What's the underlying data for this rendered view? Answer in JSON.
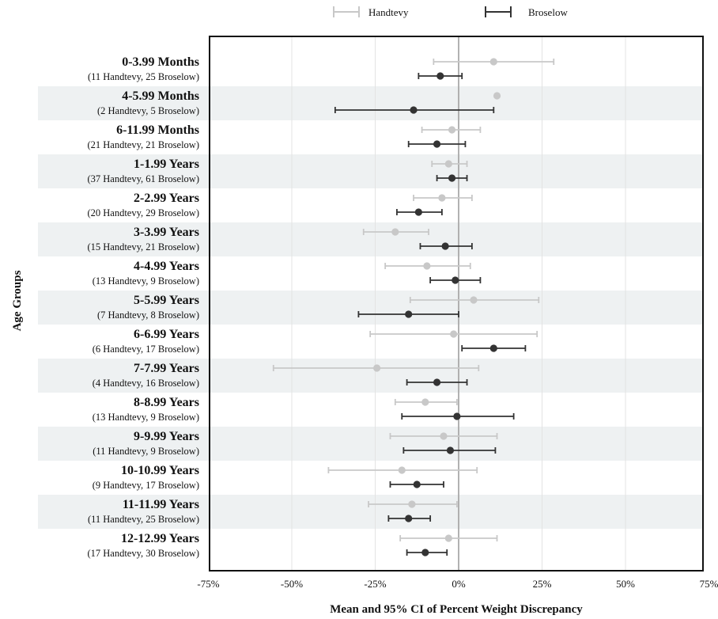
{
  "chart_data": {
    "type": "forest",
    "xlabel": "Mean and 95% CI of Percent Weight Discrepancy",
    "ylabel": "Age Groups",
    "xlim": [
      -75,
      75
    ],
    "xticks": [
      "-75%",
      "-50%",
      "-25%",
      "0%",
      "25%",
      "50%",
      "75%"
    ],
    "xtick_values": [
      -75,
      -50,
      -25,
      0,
      25,
      50,
      75
    ],
    "grid": "vertical",
    "legend_position": "top",
    "series": [
      {
        "name": "Handtevy",
        "color": "#c8c8c8"
      },
      {
        "name": "Broselow",
        "color": "#333333"
      }
    ],
    "groups": [
      {
        "label": "0-3.99 Months",
        "counts": "(11 Handtevy, 25 Broselow)",
        "handtevy": {
          "mean": 10.5,
          "lo": -7.5,
          "hi": 28.5
        },
        "broselow": {
          "mean": -5.5,
          "lo": -12.0,
          "hi": 1.0
        }
      },
      {
        "label": "4-5.99 Months",
        "counts": "(2 Handtevy, 5 Broselow)",
        "handtevy": {
          "mean": 11.5,
          "lo": null,
          "hi": null
        },
        "broselow": {
          "mean": -13.5,
          "lo": -37.0,
          "hi": 10.5
        }
      },
      {
        "label": "6-11.99 Months",
        "counts": "(21 Handtevy, 21 Broselow)",
        "handtevy": {
          "mean": -2.0,
          "lo": -11.0,
          "hi": 6.5
        },
        "broselow": {
          "mean": -6.5,
          "lo": -15.0,
          "hi": 2.0
        }
      },
      {
        "label": "1-1.99 Years",
        "counts": "(37 Handtevy, 61 Broselow)",
        "handtevy": {
          "mean": -3.0,
          "lo": -8.0,
          "hi": 2.5
        },
        "broselow": {
          "mean": -2.0,
          "lo": -6.5,
          "hi": 2.5
        }
      },
      {
        "label": "2-2.99 Years",
        "counts": "(20 Handtevy, 29 Broselow)",
        "handtevy": {
          "mean": -5.0,
          "lo": -13.5,
          "hi": 4.0
        },
        "broselow": {
          "mean": -12.0,
          "lo": -18.5,
          "hi": -5.0
        }
      },
      {
        "label": "3-3.99 Years",
        "counts": "(15 Handtevy, 21 Broselow)",
        "handtevy": {
          "mean": -19.0,
          "lo": -28.5,
          "hi": -9.0
        },
        "broselow": {
          "mean": -4.0,
          "lo": -11.5,
          "hi": 4.0
        }
      },
      {
        "label": "4-4.99 Years",
        "counts": "(13 Handtevy, 9 Broselow)",
        "handtevy": {
          "mean": -9.5,
          "lo": -22.0,
          "hi": 3.5
        },
        "broselow": {
          "mean": -1.0,
          "lo": -8.5,
          "hi": 6.5
        }
      },
      {
        "label": "5-5.99 Years",
        "counts": "(7 Handtevy, 8 Broselow)",
        "handtevy": {
          "mean": 4.5,
          "lo": -14.5,
          "hi": 24.0
        },
        "broselow": {
          "mean": -15.0,
          "lo": -30.0,
          "hi": 0.0
        }
      },
      {
        "label": "6-6.99 Years",
        "counts": "(6 Handtevy, 17 Broselow)",
        "handtevy": {
          "mean": -1.5,
          "lo": -26.5,
          "hi": 23.5
        },
        "broselow": {
          "mean": 10.5,
          "lo": 1.0,
          "hi": 20.0
        }
      },
      {
        "label": "7-7.99 Years",
        "counts": "(4 Handtevy, 16 Broselow)",
        "handtevy": {
          "mean": -24.5,
          "lo": -55.5,
          "hi": 6.0
        },
        "broselow": {
          "mean": -6.5,
          "lo": -15.5,
          "hi": 2.5
        }
      },
      {
        "label": "8-8.99 Years",
        "counts": "(13 Handtevy, 9 Broselow)",
        "handtevy": {
          "mean": -10.0,
          "lo": -19.0,
          "hi": -0.5
        },
        "broselow": {
          "mean": -0.5,
          "lo": -17.0,
          "hi": 16.5
        }
      },
      {
        "label": "9-9.99 Years",
        "counts": "(11 Handtevy, 9 Broselow)",
        "handtevy": {
          "mean": -4.5,
          "lo": -20.5,
          "hi": 11.5
        },
        "broselow": {
          "mean": -2.5,
          "lo": -16.5,
          "hi": 11.0
        }
      },
      {
        "label": "10-10.99 Years",
        "counts": "(9 Handtevy, 17 Broselow)",
        "handtevy": {
          "mean": -17.0,
          "lo": -39.0,
          "hi": 5.5
        },
        "broselow": {
          "mean": -12.5,
          "lo": -20.5,
          "hi": -4.5
        }
      },
      {
        "label": "11-11.99 Years",
        "counts": "(11 Handtevy, 25 Broselow)",
        "handtevy": {
          "mean": -14.0,
          "lo": -27.0,
          "hi": -0.5
        },
        "broselow": {
          "mean": -15.0,
          "lo": -21.0,
          "hi": -8.5
        }
      },
      {
        "label": "12-12.99 Years",
        "counts": "(17 Handtevy, 30 Broselow)",
        "handtevy": {
          "mean": -3.0,
          "lo": -17.5,
          "hi": 11.5
        },
        "broselow": {
          "mean": -10.0,
          "lo": -15.5,
          "hi": -3.5
        }
      }
    ]
  }
}
